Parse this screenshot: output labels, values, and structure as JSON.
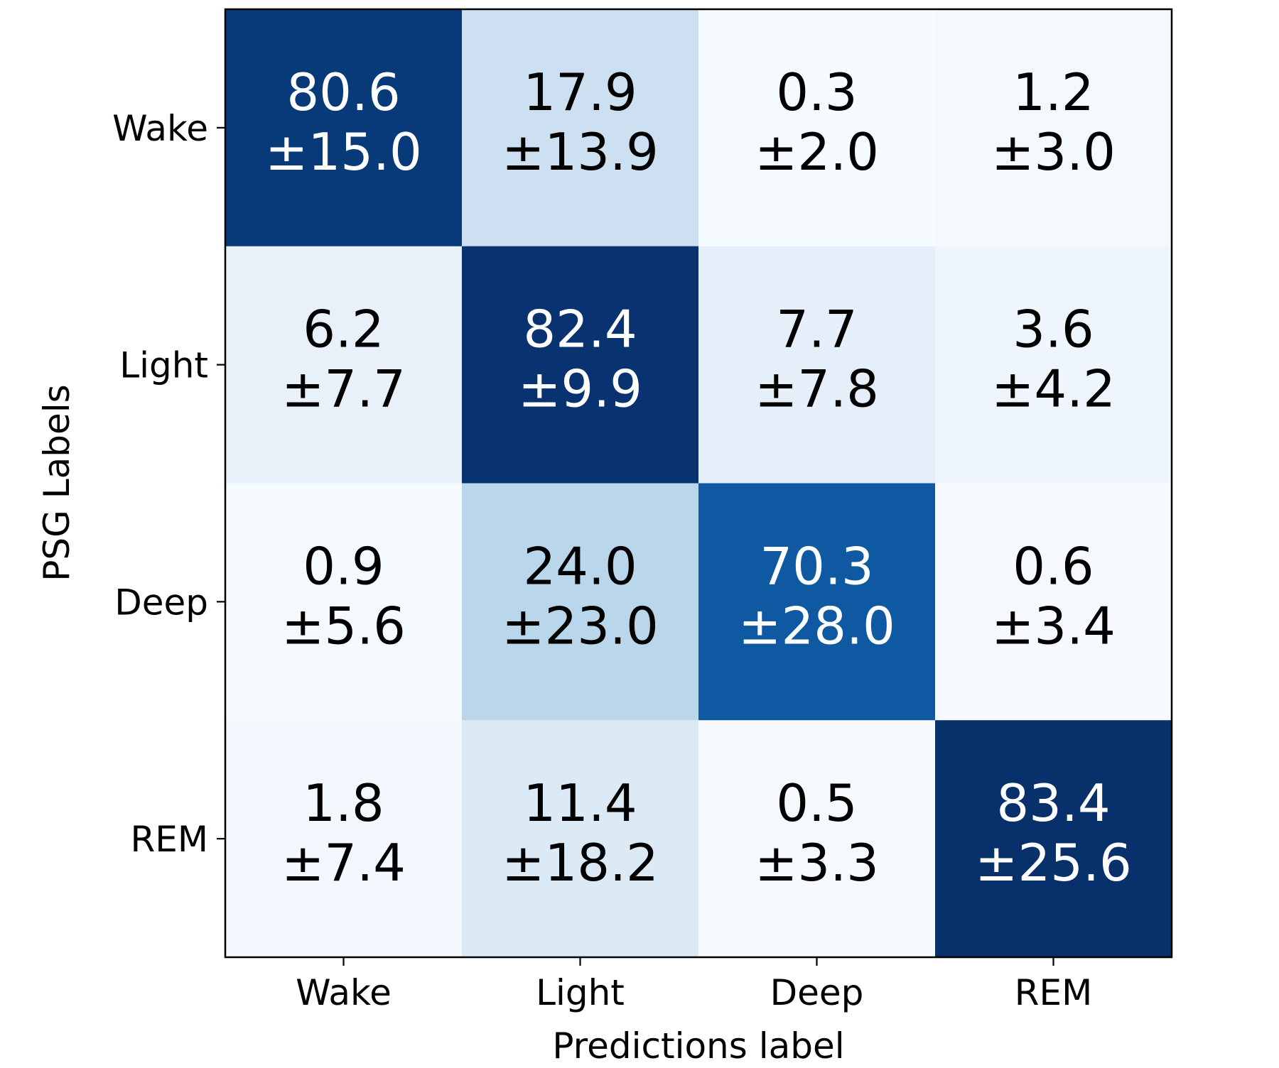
{
  "chart_data": {
    "type": "heatmap",
    "xlabel": "Predictions label",
    "ylabel": "PSG Labels",
    "x_categories": [
      "Wake",
      "Light",
      "Deep",
      "REM"
    ],
    "y_categories": [
      "Wake",
      "Light",
      "Deep",
      "REM"
    ],
    "values": [
      [
        80.6,
        17.9,
        0.3,
        1.2
      ],
      [
        6.2,
        82.4,
        7.7,
        3.6
      ],
      [
        0.9,
        24.0,
        70.3,
        0.6
      ],
      [
        1.8,
        11.4,
        0.5,
        83.4
      ]
    ],
    "std": [
      [
        15.0,
        13.9,
        2.0,
        3.0
      ],
      [
        7.7,
        9.9,
        7.8,
        4.2
      ],
      [
        5.6,
        23.0,
        28.0,
        3.4
      ],
      [
        7.4,
        18.2,
        3.3,
        25.6
      ]
    ],
    "cell_labels": [
      [
        [
          "80.6",
          "±15.0"
        ],
        [
          "17.9",
          "±13.9"
        ],
        [
          "0.3",
          "±2.0"
        ],
        [
          "1.2",
          "±3.0"
        ]
      ],
      [
        [
          "6.2",
          "±7.7"
        ],
        [
          "82.4",
          "±9.9"
        ],
        [
          "7.7",
          "±7.8"
        ],
        [
          "3.6",
          "±4.2"
        ]
      ],
      [
        [
          "0.9",
          "±5.6"
        ],
        [
          "24.0",
          "±23.0"
        ],
        [
          "70.3",
          "±28.0"
        ],
        [
          "0.6",
          "±3.4"
        ]
      ],
      [
        [
          "1.8",
          "±7.4"
        ],
        [
          "11.4",
          "±18.2"
        ],
        [
          "0.5",
          "±3.3"
        ],
        [
          "83.4",
          "±25.6"
        ]
      ]
    ],
    "colormap": "Blues",
    "value_range": [
      0,
      83.4
    ],
    "grid": false,
    "legend": "none"
  }
}
